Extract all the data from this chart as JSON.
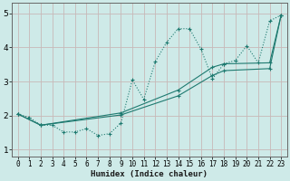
{
  "xlabel": "Humidex (Indice chaleur)",
  "bg_color": "#ceeae8",
  "grid_color": "#c8b8b8",
  "line_color": "#1e7a70",
  "xlim": [
    -0.5,
    23.5
  ],
  "ylim": [
    0.8,
    5.3
  ],
  "xticks": [
    0,
    1,
    2,
    3,
    4,
    5,
    6,
    7,
    8,
    9,
    10,
    11,
    12,
    13,
    14,
    15,
    16,
    17,
    18,
    19,
    20,
    21,
    22,
    23
  ],
  "yticks": [
    1,
    2,
    3,
    4,
    5
  ],
  "series1_x": [
    0,
    1,
    2,
    3,
    4,
    5,
    6,
    7,
    8,
    9,
    10,
    11,
    12,
    13,
    14,
    15,
    16,
    17,
    18,
    19,
    20,
    21,
    22,
    23
  ],
  "series1_y": [
    2.05,
    1.95,
    1.72,
    1.72,
    1.52,
    1.52,
    1.62,
    1.42,
    1.47,
    1.78,
    3.05,
    2.48,
    3.58,
    4.15,
    4.55,
    4.55,
    3.95,
    3.08,
    3.52,
    3.62,
    4.05,
    3.55,
    4.78,
    4.95
  ],
  "series2_x": [
    0,
    2,
    9,
    14,
    17,
    18,
    22,
    23
  ],
  "series2_y": [
    2.05,
    1.72,
    2.08,
    2.75,
    3.42,
    3.52,
    3.55,
    4.95
  ],
  "series3_x": [
    0,
    2,
    9,
    14,
    17,
    18,
    22,
    23
  ],
  "series3_y": [
    2.05,
    1.72,
    2.02,
    2.58,
    3.18,
    3.32,
    3.38,
    4.95
  ]
}
